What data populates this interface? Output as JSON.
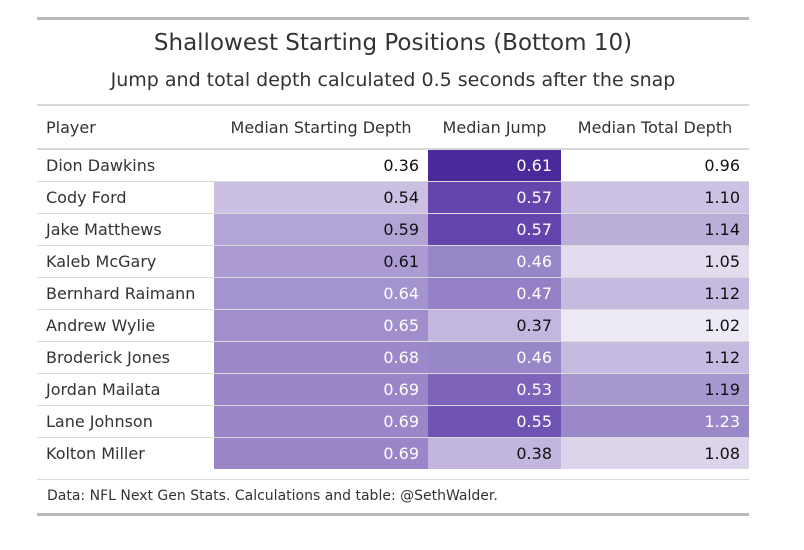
{
  "title": "Shallowest Starting Positions (Bottom 10)",
  "subtitle": "Jump and total depth calculated 0.5 seconds after the snap",
  "columns": {
    "player": "Player",
    "start_depth": "Median Starting Depth",
    "jump": "Median Jump",
    "total_depth": "Median Total Depth"
  },
  "rows": [
    {
      "player": "Dion Dawkins",
      "start_depth": "0.36",
      "jump": "0.61",
      "total_depth": "0.96"
    },
    {
      "player": "Cody Ford",
      "start_depth": "0.54",
      "jump": "0.57",
      "total_depth": "1.10"
    },
    {
      "player": "Jake Matthews",
      "start_depth": "0.59",
      "jump": "0.57",
      "total_depth": "1.14"
    },
    {
      "player": "Kaleb McGary",
      "start_depth": "0.61",
      "jump": "0.46",
      "total_depth": "1.05"
    },
    {
      "player": "Bernhard Raimann",
      "start_depth": "0.64",
      "jump": "0.47",
      "total_depth": "1.12"
    },
    {
      "player": "Andrew Wylie",
      "start_depth": "0.65",
      "jump": "0.37",
      "total_depth": "1.02"
    },
    {
      "player": "Broderick Jones",
      "start_depth": "0.68",
      "jump": "0.46",
      "total_depth": "1.12"
    },
    {
      "player": "Jordan Mailata",
      "start_depth": "0.69",
      "jump": "0.53",
      "total_depth": "1.19"
    },
    {
      "player": "Lane Johnson",
      "start_depth": "0.69",
      "jump": "0.55",
      "total_depth": "1.23"
    },
    {
      "player": "Kolton Miller",
      "start_depth": "0.69",
      "jump": "0.38",
      "total_depth": "1.08"
    }
  ],
  "cell_colors": [
    {
      "start_depth": "#ffffff",
      "jump": "#4a2a9b",
      "total_depth": "#ffffff"
    },
    {
      "start_depth": "#cbbfe2",
      "jump": "#6445ad",
      "total_depth": "#cdc2e3"
    },
    {
      "start_depth": "#b3a4d6",
      "jump": "#6445ad",
      "total_depth": "#bbaed9"
    },
    {
      "start_depth": "#ab9bd2",
      "jump": "#9887c8",
      "total_depth": "#e2dcee"
    },
    {
      "start_depth": "#a393ce",
      "jump": "#957fc5",
      "total_depth": "#c6bae0"
    },
    {
      "start_depth": "#a18fcd",
      "jump": "#c3b6df",
      "total_depth": "#ede9f5"
    },
    {
      "start_depth": "#9c89ca",
      "jump": "#9887c8",
      "total_depth": "#c6bae0"
    },
    {
      "start_depth": "#9a86c9",
      "jump": "#7d63ba",
      "total_depth": "#a898d0"
    },
    {
      "start_depth": "#9a86c9",
      "jump": "#6f53b3",
      "total_depth": "#9a88c9"
    },
    {
      "start_depth": "#9a86c9",
      "jump": "#c2b5de",
      "total_depth": "#dcd4eb"
    }
  ],
  "text_colors": [
    {
      "start_depth": "#111111",
      "jump": "#ffffff",
      "total_depth": "#111111"
    },
    {
      "start_depth": "#111111",
      "jump": "#ffffff",
      "total_depth": "#111111"
    },
    {
      "start_depth": "#111111",
      "jump": "#ffffff",
      "total_depth": "#111111"
    },
    {
      "start_depth": "#111111",
      "jump": "#ffffff",
      "total_depth": "#111111"
    },
    {
      "start_depth": "#ffffff",
      "jump": "#ffffff",
      "total_depth": "#111111"
    },
    {
      "start_depth": "#ffffff",
      "jump": "#111111",
      "total_depth": "#111111"
    },
    {
      "start_depth": "#ffffff",
      "jump": "#ffffff",
      "total_depth": "#111111"
    },
    {
      "start_depth": "#ffffff",
      "jump": "#ffffff",
      "total_depth": "#111111"
    },
    {
      "start_depth": "#ffffff",
      "jump": "#ffffff",
      "total_depth": "#ffffff"
    },
    {
      "start_depth": "#ffffff",
      "jump": "#111111",
      "total_depth": "#111111"
    }
  ],
  "caption": "Data: NFL Next Gen Stats. Calculations and table: @SethWalder."
}
